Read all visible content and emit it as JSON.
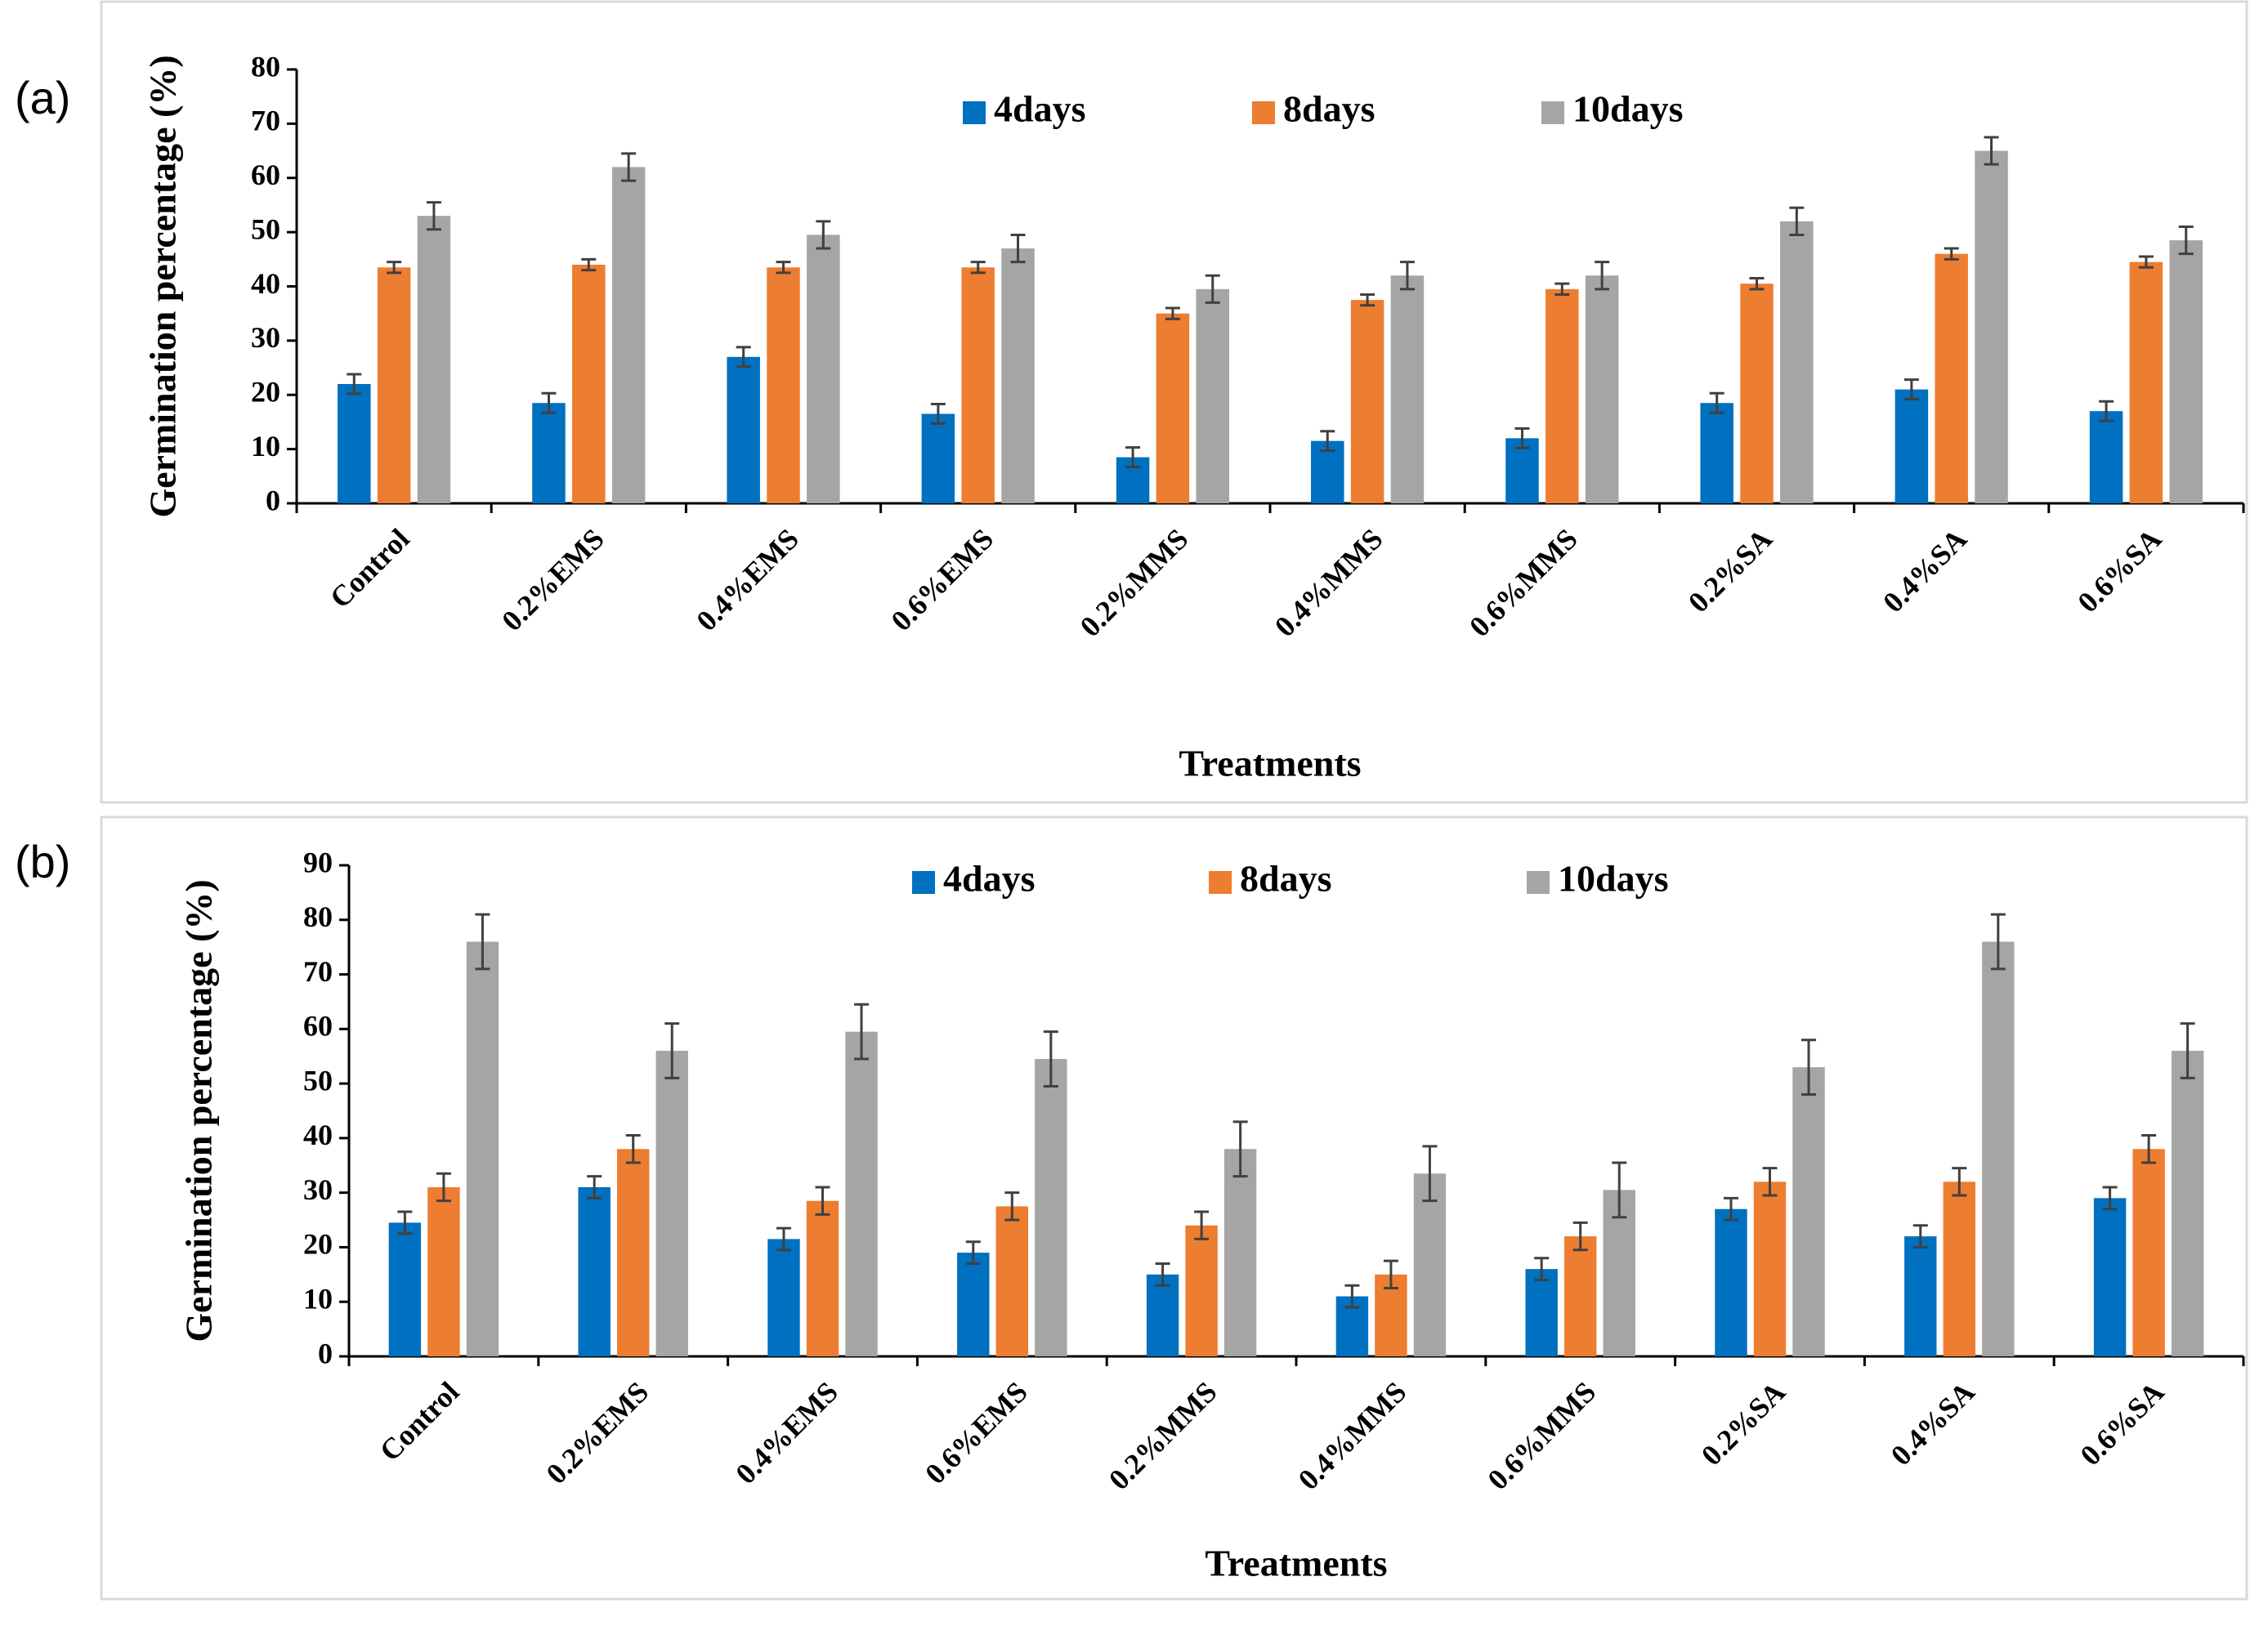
{
  "chart_data": [
    {
      "type": "bar",
      "panel_label": "(a)",
      "y_label": "Germination  percentage (%)",
      "x_label": "Treatments",
      "categories": [
        "Control",
        "0.2%EMS",
        "0.4%EMS",
        "0.6%EMS",
        "0.2%MMS",
        "0.4%MMS",
        "0.6%MMS",
        "0.2%SA",
        "0.4%SA",
        "0.6%SA"
      ],
      "series": [
        {
          "name": "4days",
          "color": "#0070c0",
          "values": [
            22,
            18.5,
            27,
            16.5,
            8.5,
            11.5,
            12,
            18.5,
            21,
            17
          ],
          "errors": [
            1.8,
            1.8,
            1.8,
            1.8,
            1.8,
            1.8,
            1.8,
            1.8,
            1.8,
            1.8
          ]
        },
        {
          "name": "8days",
          "color": "#ed7d31",
          "values": [
            43.5,
            44,
            43.5,
            43.5,
            35,
            37.5,
            39.5,
            40.5,
            46,
            44.5
          ],
          "errors": [
            1,
            1,
            1,
            1,
            1,
            1,
            1,
            1,
            1,
            1
          ]
        },
        {
          "name": "10days",
          "color": "#a5a5a5",
          "values": [
            53,
            62,
            49.5,
            47,
            39.5,
            42,
            42,
            52,
            65,
            48.5
          ],
          "errors": [
            2.5,
            2.5,
            2.5,
            2.5,
            2.5,
            2.5,
            2.5,
            2.5,
            2.5,
            2.5
          ]
        }
      ],
      "ylim": [
        0,
        80
      ],
      "yticks": [
        0,
        10,
        20,
        30,
        40,
        50,
        60,
        70,
        80
      ],
      "legend": "top"
    },
    {
      "type": "bar",
      "panel_label": "(b)",
      "y_label": "Germination  percentage (%)",
      "x_label": "Treatments",
      "categories": [
        "Control",
        "0.2%EMS",
        "0.4%EMS",
        "0.6%EMS",
        "0.2%MMS",
        "0.4%MMS",
        "0.6%MMS",
        "0.2%SA",
        "0.4%SA",
        "0.6%SA"
      ],
      "series": [
        {
          "name": "4days",
          "color": "#0070c0",
          "values": [
            24.5,
            31,
            21.5,
            19,
            15,
            11,
            16,
            27,
            22,
            29
          ],
          "errors": [
            2,
            2,
            2,
            2,
            2,
            2,
            2,
            2,
            2,
            2
          ]
        },
        {
          "name": "8days",
          "color": "#ed7d31",
          "values": [
            31,
            38,
            28.5,
            27.5,
            24,
            15,
            22,
            32,
            32,
            38
          ],
          "errors": [
            2.5,
            2.5,
            2.5,
            2.5,
            2.5,
            2.5,
            2.5,
            2.5,
            2.5,
            2.5
          ]
        },
        {
          "name": "10days",
          "color": "#a5a5a5",
          "values": [
            76,
            56,
            59.5,
            54.5,
            38,
            33.5,
            30.5,
            53,
            76,
            56
          ],
          "errors": [
            5,
            5,
            5,
            5,
            5,
            5,
            5,
            5,
            5,
            5
          ]
        }
      ],
      "ylim": [
        0,
        90
      ],
      "yticks": [
        0,
        10,
        20,
        30,
        40,
        50,
        60,
        70,
        80,
        90
      ],
      "legend": "top"
    }
  ]
}
